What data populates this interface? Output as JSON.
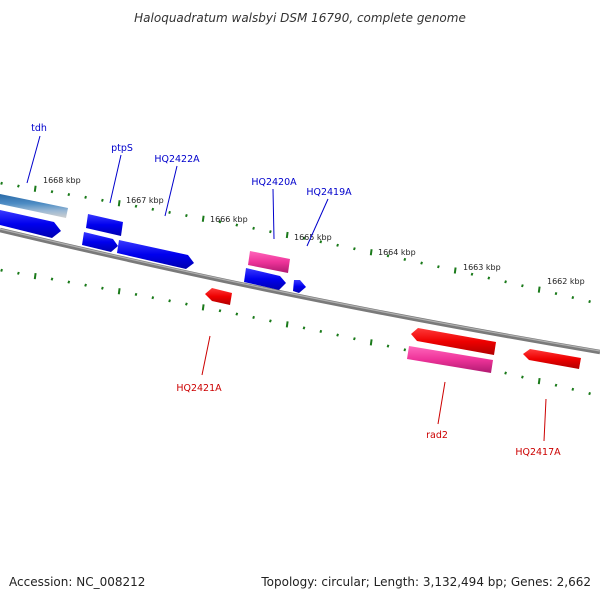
{
  "title": "Haloquadratum walsbyi DSM 16790, complete genome",
  "footer": {
    "accession": "Accession: NC_008212",
    "summary": "Topology: circular; Length: 3,132,494 bp; Genes: 2,662"
  },
  "colors": {
    "backbone": "#7a7a7a",
    "tick": "#1a7a1a",
    "forward_gene": "#0000ee",
    "reverse_gene": "#ee0000",
    "rna_gene": "#ee3399",
    "other_gene": "#3a7ab8",
    "forward_label": "#0000cc",
    "reverse_label": "#cc0000"
  },
  "scale_labels": [
    "1668 kbp",
    "1667 kbp",
    "1666 kbp",
    "1665 kbp",
    "1664 kbp",
    "1663 kbp",
    "1662 kbp"
  ],
  "forward_labels": [
    "tdh",
    "ptpS",
    "HQ2422A",
    "HQ2420A",
    "HQ2419A"
  ],
  "reverse_labels": [
    "HQ2421A",
    "rad2",
    "HQ2417A"
  ]
}
